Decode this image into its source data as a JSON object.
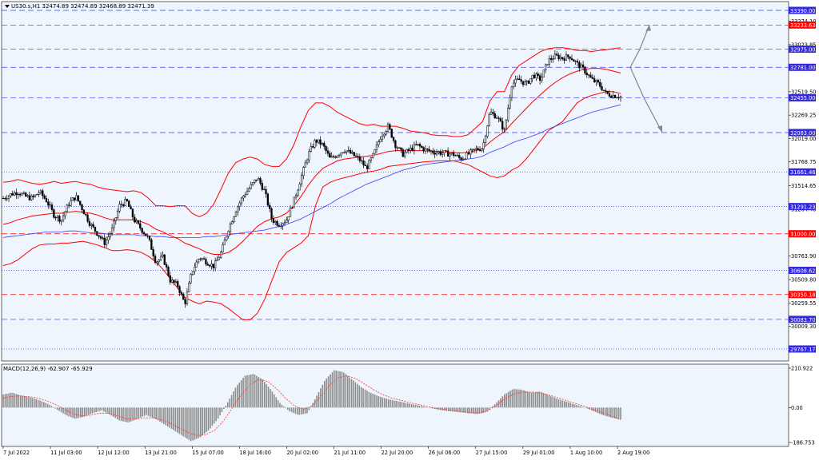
{
  "header": {
    "symbol_info": "US30.s,H1  32474.89 32474.89 32468.89 32471.39"
  },
  "macd": {
    "label": "MACD(12,26,9) -62.907 -65.929",
    "scale_labels": [
      "210.922",
      "0.00",
      "-186.753"
    ]
  },
  "colors": {
    "background": "#eef5fc",
    "candle": "#000000",
    "bollinger": "#ff0000",
    "moving_average": "#3c3cff",
    "hline_blue": "#3c3cff",
    "hline_red": "#ff0000",
    "label_blue": "#3228dc",
    "label_red": "#ff0000",
    "macd_hist": "#8c8c8c",
    "macd_signal": "#ff3232",
    "arrow": "#888888"
  },
  "chart_data": {
    "type": "candlestick",
    "symbol": "US30.s",
    "timeframe": "H1",
    "price_axis": {
      "ylim": [
        29767.17,
        33390.0
      ],
      "tick_labels": [
        "33274.10",
        "33023.85",
        "32519.50",
        "32269.25",
        "32019.00",
        "31768.75",
        "31514.65",
        "31264.40",
        "30763.90",
        "30509.80",
        "30259.55",
        "30009.30"
      ]
    },
    "time_axis": {
      "tick_labels": [
        "7 Jul 2022",
        "11 Jul 03:00",
        "12 Jul 12:00",
        "13 Jul 21:00",
        "15 Jul 07:00",
        "18 Jul 16:00",
        "20 Jul 02:00",
        "21 Jul 11:00",
        "22 Jul 20:00",
        "26 Jul 06:00",
        "27 Jul 15:00",
        "29 Jul 01:00",
        "1 Aug 10:00",
        "2 Aug 19:00"
      ]
    },
    "horizontal_levels": [
      {
        "price": 33390.0,
        "label": "33390.00",
        "color": "blue",
        "style": "dashed"
      },
      {
        "price": 33233.63,
        "label": "33233.63",
        "color": "red",
        "style": "dashed"
      },
      {
        "price": 32975.0,
        "label": "32975.00",
        "color": "blue",
        "style": "dashed"
      },
      {
        "price": 32781.0,
        "label": "32781.00",
        "color": "blue",
        "style": "dashed"
      },
      {
        "price": 32455.0,
        "label": "32455.00",
        "color": "blue",
        "style": "dashed"
      },
      {
        "price": 32083.0,
        "label": "32083.00",
        "color": "blue",
        "style": "dashed"
      },
      {
        "price": 31661.46,
        "label": "31661.46",
        "color": "blue",
        "style": "dotted"
      },
      {
        "price": 31291.23,
        "label": "31291.23",
        "color": "blue",
        "style": "dotted"
      },
      {
        "price": 31000.0,
        "label": "31000.00",
        "color": "red",
        "style": "dashed"
      },
      {
        "price": 30608.62,
        "label": "30608.62",
        "color": "blue",
        "style": "dotted"
      },
      {
        "price": 30350.18,
        "label": "30350.18",
        "color": "red",
        "style": "dashed"
      },
      {
        "price": 30083.7,
        "label": "30083.70",
        "color": "blue",
        "style": "dashed"
      },
      {
        "price": 29767.17,
        "label": "29767.17",
        "color": "blue",
        "style": "dotted"
      }
    ],
    "close_path": [
      31380,
      31420,
      31450,
      31400,
      31380,
      31450,
      31350,
      31200,
      31150,
      31320,
      31400,
      31250,
      31100,
      31000,
      30900,
      31050,
      31300,
      31350,
      31150,
      31050,
      30950,
      30700,
      30750,
      30500,
      30450,
      30250,
      30600,
      30750,
      30700,
      30650,
      30800,
      31050,
      31250,
      31400,
      31500,
      31600,
      31450,
      31150,
      31100,
      31150,
      31350,
      31600,
      31850,
      32000,
      31950,
      31800,
      31850,
      31900,
      31850,
      31800,
      31700,
      31850,
      32050,
      32150,
      31950,
      31850,
      31900,
      31950,
      31900,
      31880,
      31870,
      31860,
      31850,
      31800,
      31850,
      31900,
      31920,
      32300,
      32250,
      32100,
      32600,
      32650,
      32600,
      32700,
      32650,
      32850,
      32900,
      32880,
      32900,
      32820,
      32750,
      32650,
      32600,
      32500,
      32480,
      32470
    ],
    "bollinger_upper": [
      31550,
      31560,
      31580,
      31560,
      31540,
      31530,
      31540,
      31560,
      31540,
      31550,
      31560,
      31540,
      31530,
      31500,
      31480,
      31470,
      31460,
      31450,
      31460,
      31440,
      31380,
      31300,
      31300,
      31290,
      31300,
      31300,
      31220,
      31180,
      31220,
      31320,
      31480,
      31650,
      31760,
      31800,
      31820,
      31800,
      31740,
      31720,
      31720,
      31800,
      31950,
      32150,
      32320,
      32400,
      32400,
      32360,
      32300,
      32260,
      32220,
      32180,
      32160,
      32170,
      32150,
      32150,
      32150,
      32130,
      32100,
      32090,
      32080,
      32060,
      32050,
      32050,
      32040,
      32040,
      32060,
      32130,
      32200,
      32420,
      32520,
      32520,
      32700,
      32800,
      32850,
      32900,
      32950,
      32980,
      32990,
      32990,
      32980,
      32960,
      32960,
      32950,
      32960,
      32970,
      32980,
      32990
    ],
    "bollinger_middle": [
      31100,
      31120,
      31150,
      31170,
      31190,
      31200,
      31210,
      31220,
      31220,
      31230,
      31240,
      31230,
      31220,
      31200,
      31170,
      31150,
      31150,
      31150,
      31150,
      31130,
      31100,
      31050,
      31020,
      30980,
      30950,
      30900,
      30870,
      30840,
      30800,
      30780,
      30780,
      30800,
      30850,
      30920,
      31000,
      31080,
      31130,
      31160,
      31180,
      31220,
      31300,
      31400,
      31520,
      31620,
      31700,
      31740,
      31780,
      31800,
      31810,
      31820,
      31830,
      31840,
      31860,
      31880,
      31890,
      31890,
      31890,
      31890,
      31890,
      31885,
      31880,
      31875,
      31870,
      31865,
      31870,
      31890,
      31910,
      31980,
      32040,
      32090,
      32180,
      32260,
      32340,
      32420,
      32490,
      32560,
      32620,
      32670,
      32710,
      32740,
      32760,
      32770,
      32770,
      32760,
      32740,
      32720
    ],
    "bollinger_lower": [
      30660,
      30680,
      30720,
      30780,
      30840,
      30880,
      30890,
      30890,
      30900,
      30900,
      30910,
      30920,
      30900,
      30880,
      30850,
      30820,
      30820,
      30830,
      30820,
      30800,
      30760,
      30700,
      30620,
      30520,
      30420,
      30320,
      30280,
      30250,
      30280,
      30270,
      30250,
      30200,
      30140,
      30080,
      30080,
      30150,
      30300,
      30500,
      30700,
      30800,
      30850,
      30900,
      30980,
      31300,
      31500,
      31550,
      31580,
      31600,
      31620,
      31640,
      31660,
      31670,
      31690,
      31720,
      31730,
      31740,
      31750,
      31760,
      31770,
      31775,
      31780,
      31780,
      31780,
      31760,
      31740,
      31700,
      31660,
      31620,
      31600,
      31620,
      31680,
      31720,
      31800,
      31900,
      32000,
      32100,
      32150,
      32200,
      32300,
      32400,
      32450,
      32480,
      32500,
      32520,
      32520,
      32500
    ],
    "moving_average": [
      30960,
      30970,
      30980,
      30990,
      31000,
      31010,
      31020,
      31020,
      31020,
      31030,
      31030,
      31020,
      31010,
      31010,
      31000,
      30990,
      30990,
      30990,
      30990,
      30980,
      30980,
      30970,
      30970,
      30960,
      30960,
      30960,
      30960,
      30960,
      30970,
      30970,
      30980,
      30990,
      31000,
      31010,
      31020,
      31030,
      31040,
      31060,
      31080,
      31100,
      31130,
      31160,
      31200,
      31240,
      31280,
      31320,
      31370,
      31410,
      31450,
      31490,
      31530,
      31560,
      31590,
      31620,
      31650,
      31680,
      31700,
      31720,
      31740,
      31750,
      31760,
      31770,
      31780,
      31790,
      31800,
      31810,
      31830,
      31870,
      31900,
      31930,
      31970,
      32000,
      32020,
      32050,
      32080,
      32120,
      32150,
      32180,
      32210,
      32240,
      32270,
      32300,
      32320,
      32340,
      32360,
      32380
    ],
    "projections": [
      {
        "from_price": 32781.0,
        "to_price": 33233.63,
        "direction": "up"
      },
      {
        "from_price": 32781.0,
        "to_price": 32083.0,
        "direction": "down"
      }
    ],
    "macd_indicator": {
      "fast": 12,
      "slow": 26,
      "signal": [
        50,
        60,
        62,
        58,
        50,
        35,
        15,
        -10,
        -35,
        -45,
        -40,
        -30,
        -30,
        -45,
        -60,
        -62,
        -55,
        -55,
        -65,
        -85,
        -110,
        -135,
        -150,
        -145,
        -120,
        -70,
        0,
        70,
        125,
        150,
        140,
        100,
        50,
        10,
        -10,
        10,
        60,
        120,
        160,
        170,
        155,
        125,
        95,
        70,
        52,
        40,
        28,
        17,
        6,
        -3,
        -10,
        -16,
        -22,
        -27,
        -28,
        -15,
        15,
        50,
        75,
        82,
        83,
        78,
        65,
        50,
        35,
        20,
        5,
        -12,
        -30,
        -45,
        -65.929
      ],
      "current_macd": -62.907,
      "current_signal": -65.929,
      "ylim": [
        -186.753,
        210.922
      ],
      "histogram": [
        70,
        80,
        65,
        55,
        40,
        20,
        -10,
        -40,
        -60,
        -50,
        -30,
        -15,
        -40,
        -70,
        -80,
        -60,
        -40,
        -60,
        -90,
        -120,
        -150,
        -180,
        -160,
        -120,
        -60,
        20,
        110,
        170,
        180,
        150,
        90,
        20,
        -20,
        -40,
        -30,
        60,
        150,
        200,
        190,
        150,
        110,
        80,
        60,
        45,
        35,
        25,
        15,
        5,
        -5,
        -15,
        -20,
        -25,
        -30,
        -35,
        -25,
        20,
        70,
        100,
        95,
        80,
        85,
        65,
        45,
        30,
        15,
        0,
        -20,
        -40,
        -55,
        -62.9
      ]
    }
  }
}
